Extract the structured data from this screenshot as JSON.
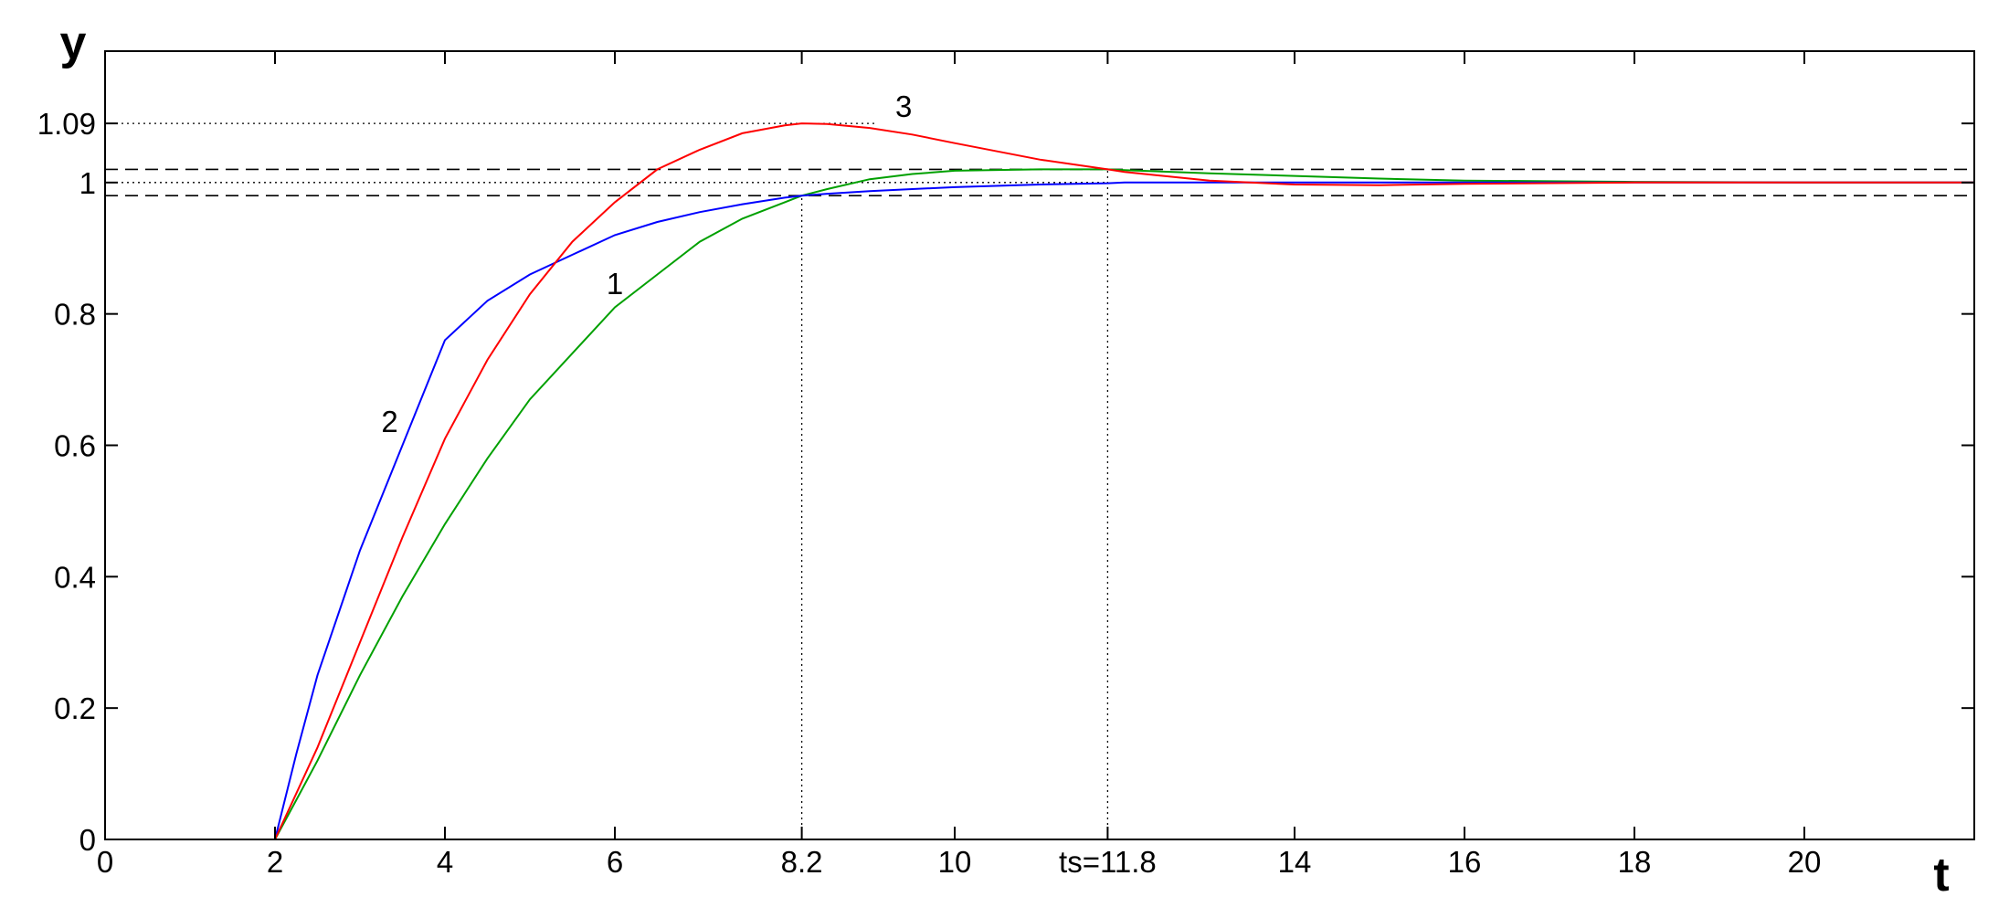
{
  "chart_data": {
    "type": "line",
    "x_label": "t",
    "y_label": "y",
    "x": [
      2,
      2.25,
      2.5,
      3,
      3.5,
      4,
      4.5,
      5,
      5.5,
      6,
      6.5,
      7,
      7.5,
      8,
      8.2,
      8.5,
      9,
      9.5,
      10,
      11,
      11.8,
      12,
      13,
      14,
      15,
      16,
      18,
      20,
      22
    ],
    "series": [
      {
        "name": "1",
        "color": "#00a000",
        "values": [
          0,
          0.06,
          0.12,
          0.25,
          0.37,
          0.48,
          0.58,
          0.67,
          0.74,
          0.81,
          0.86,
          0.91,
          0.945,
          0.97,
          0.98,
          0.99,
          1.005,
          1.013,
          1.018,
          1.02,
          1.02,
          1.019,
          1.014,
          1.01,
          1.006,
          1.003,
          1.001,
          1,
          1
        ]
      },
      {
        "name": "2",
        "color": "#0000ff",
        "values": [
          0,
          0.13,
          0.25,
          0.44,
          0.6,
          0.76,
          0.82,
          0.86,
          0.89,
          0.92,
          0.94,
          0.955,
          0.967,
          0.977,
          0.98,
          0.983,
          0.987,
          0.99,
          0.993,
          0.997,
          0.999,
          1,
          1,
          1,
          1,
          1,
          1,
          1,
          1
        ]
      },
      {
        "name": "3",
        "color": "#ff0000",
        "values": [
          0,
          0.07,
          0.14,
          0.3,
          0.46,
          0.61,
          0.73,
          0.83,
          0.91,
          0.97,
          1.02,
          1.05,
          1.075,
          1.087,
          1.09,
          1.089,
          1.083,
          1.073,
          1.06,
          1.035,
          1.02,
          1.016,
          1.003,
          0.997,
          0.996,
          0.998,
          1,
          1,
          1
        ]
      }
    ],
    "xlim": [
      0,
      22
    ],
    "ylim": [
      0,
      1.2
    ],
    "xticks": [
      0,
      2,
      4,
      6,
      8.2,
      10,
      {
        "value": 11.8,
        "label": "ts=11.8"
      },
      14,
      16,
      18,
      20
    ],
    "yticks": [
      0,
      0.2,
      0.4,
      0.6,
      0.8,
      1,
      1.09
    ],
    "band_lines": [
      1.02,
      0.98
    ],
    "dotted_levels": [
      1.09,
      1
    ],
    "dotted_markers": [
      {
        "x": 8.2,
        "y": 0.98
      },
      {
        "x": 11.8,
        "y": 1.02
      }
    ]
  }
}
